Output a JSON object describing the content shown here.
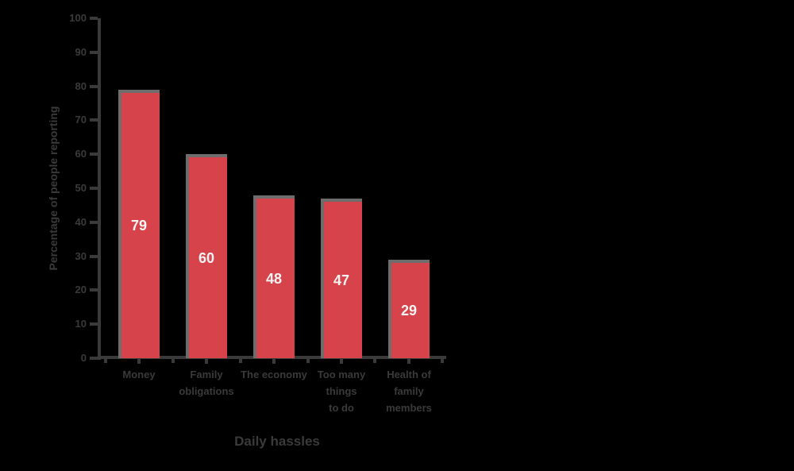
{
  "chart_data": {
    "type": "bar",
    "title": "",
    "xlabel": "Daily hassles",
    "ylabel": "Percentage of people reporting",
    "categories": [
      {
        "name": "Money",
        "lines": [
          "Money"
        ]
      },
      {
        "name": "Family obligations",
        "lines": [
          "Family",
          "obligations"
        ]
      },
      {
        "name": "The economy",
        "lines": [
          "The economy"
        ]
      },
      {
        "name": "Too many things to do",
        "lines": [
          "Too many",
          "things",
          "to do"
        ]
      },
      {
        "name": "Health of family members",
        "lines": [
          "Health of",
          "family",
          "members"
        ]
      }
    ],
    "values": [
      79,
      60,
      48,
      47,
      29
    ],
    "value_labels": [
      "79",
      "60",
      "48",
      "47",
      "29"
    ],
    "ylim": [
      0,
      100
    ],
    "ytick_step": 10,
    "ytick_labels": [
      "0",
      "10",
      "20",
      "30",
      "40",
      "50",
      "60",
      "70",
      "80",
      "90",
      "100"
    ],
    "grid": false,
    "legend": null
  },
  "colors": {
    "background": "#000000",
    "bar_fill": "#d7434a",
    "bar_border": "#6f6c6d",
    "axis": "#3a3a3a",
    "text": "#3a3a3a",
    "value_label": "#f7f4f4"
  }
}
